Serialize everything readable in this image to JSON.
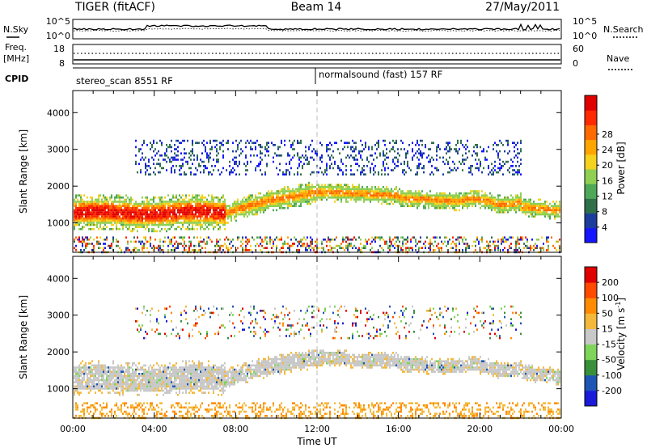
{
  "header": {
    "station": "TIGER (fitACF)",
    "beam": "Beam 14",
    "date": "27/May/2011"
  },
  "noise_panel": {
    "left_label": "N.Sky",
    "right_label": "N.Search",
    "ticks": [
      "10^5",
      "10^0"
    ]
  },
  "freq_panel": {
    "left_label_line1": "Freq.",
    "left_label_line2": "[MHz]",
    "left_ticks": [
      "18",
      "8"
    ],
    "right_label": "Nave",
    "right_ticks": [
      "60",
      "0"
    ]
  },
  "cpid_panel": {
    "label": "CPID",
    "mode1": "stereo_scan 8551 RF",
    "mode2": "normalsound (fast) 157 RF"
  },
  "chart_data": [
    {
      "type": "heatmap",
      "name": "power",
      "ylabel": "Slant Range [km]",
      "yticks": [
        "1000",
        "2000",
        "3000",
        "4000"
      ],
      "ylim": [
        200,
        4600
      ],
      "xlim_hours": [
        0,
        24
      ],
      "colorbar": {
        "label": "Power [dB]",
        "ticks": [
          "4",
          "8",
          "12",
          "16",
          "20",
          "24",
          "28"
        ],
        "colors": [
          "#1515ff",
          "#1a3d9e",
          "#2f6f4a",
          "#4ea857",
          "#8fcf52",
          "#f5d21b",
          "#ffa500",
          "#ff6a00",
          "#ff2a00",
          "#e00000"
        ]
      }
    },
    {
      "type": "heatmap",
      "name": "velocity",
      "ylabel": "Slant Range [km]",
      "yticks": [
        "1000",
        "2000",
        "3000",
        "4000"
      ],
      "ylim": [
        200,
        4600
      ],
      "xlim_hours": [
        0,
        24
      ],
      "colorbar": {
        "label": "Velocity [m s",
        "label_sup": "-1",
        "label_end": "]",
        "ticks": [
          "200",
          "100",
          "50",
          "15",
          "-15",
          "-50",
          "-100",
          "-200"
        ],
        "colors": [
          "#1a1ad9",
          "#1f55b5",
          "#3a8f3a",
          "#7fd45a",
          "#c8c8c8",
          "#f4b93a",
          "#ff8c00",
          "#ff4a00",
          "#e00000"
        ]
      }
    }
  ],
  "xaxis": {
    "ticks": [
      "00:00",
      "04:00",
      "08:00",
      "12:00",
      "16:00",
      "20:00",
      "00:00"
    ],
    "label": "Time UT"
  }
}
